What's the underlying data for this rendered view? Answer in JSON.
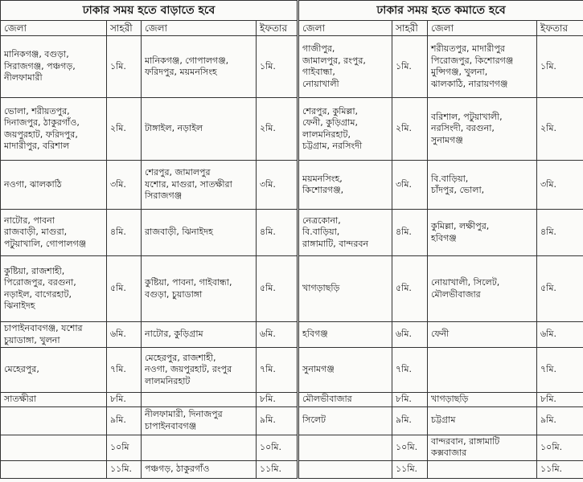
{
  "titles": {
    "increase": "ঢাকার সময় হতে বাড়াতে হবে",
    "decrease": "ঢাকার সময় হতে কমাতে হবে"
  },
  "headers": {
    "district": "জেলা",
    "sehri": "সাহরী",
    "iftar": "ইফতার"
  },
  "rows": [
    {
      "inc_sehri_districts": "মানিকগঞ্জ, বগুড়া,\nসিরাজগঞ্জ, পঞ্চগড়,\nনীলফামারী",
      "inc_sehri": "১মি.",
      "inc_iftar_districts": "মানিকগঞ্জ, গোপালগঞ্জ,\nফরিদপুর, ময়মনসিংহ",
      "inc_iftar": "১মি.",
      "dec_sehri_districts": "গাজীপুর,\nজামালপুর, রংপুর,\nগাইবান্ধা,\nনোয়াখালী",
      "dec_sehri": "১মি.",
      "dec_iftar_districts": "শরীয়তপুর, মাদারীপুর\nপিরোজপুর, কিশোরগঞ্জ\nমুন্সিগঞ্জ, খুলনা,\nঝালকাঠি, নারায়ণগঞ্জ",
      "dec_iftar": "১মি."
    },
    {
      "inc_sehri_districts": "ভোলা, শরীয়তপুর,\nদিনাজপুর, ঠাকুরগাঁও,\nজয়পুরহাট, ফরিদপুর,\nমাদারীপুর, বরিশাল",
      "inc_sehri": "২মি.",
      "inc_iftar_districts": "টাঙ্গাইল, নড়াইল",
      "inc_iftar": "২মি.",
      "dec_sehri_districts": "শেরপুর, কুমিল্লা,\nফেনী, কুড়িগ্রাম,\nলালমনিরহাট,\nচট্টগ্রাম, নরসিংদী",
      "dec_sehri": "২মি.",
      "dec_iftar_districts": "বরিশাল, পটুয়াখালী,\nনরসিংদী, বরগুনা,\nসুনামগঞ্জ",
      "dec_iftar": "২মি."
    },
    {
      "inc_sehri_districts": "নওগা, ঝালকাঠি",
      "inc_sehri": "৩মি.",
      "inc_iftar_districts": "শেরপুর, জামালপুর\nযশোর, মাগুরা, সাতক্ষীরা\nসিরাজগঞ্জ",
      "inc_iftar": "৩মি.",
      "dec_sehri_districts": "ময়মনসিংহ,\nকিশোরগঞ্জ,",
      "dec_sehri": "৩মি.",
      "dec_iftar_districts": "বি.বাড়িয়া,\nচাঁদপুর, ভোলা,",
      "dec_iftar": "৩মি."
    },
    {
      "inc_sehri_districts": "নাটোর, পাবনা\nরাজবাড়ী, মাগুরা,\nপটুয়াখালি, গোপালগঞ্জ",
      "inc_sehri": "৪মি.",
      "inc_iftar_districts": "রাজবাড়ী, ঝিনাইদহ",
      "inc_iftar": "৪মি.",
      "dec_sehri_districts": "নেত্রকোনা,\nবি.বাড়িয়া,\nরাঙ্গামাটি, বান্দরবন",
      "dec_sehri": "৪মি.",
      "dec_iftar_districts": "কুমিল্লা, লক্ষীপুর,\nহবিগঞ্জ",
      "dec_iftar": "৪মি."
    },
    {
      "inc_sehri_districts": "কুষ্টিয়া, রাজশাহী,\nপিরোজপুর, বরগুনা,\nনড়াইল, বাগেরহাট,\nঝিনাইদহ",
      "inc_sehri": "৫মি.",
      "inc_iftar_districts": "কুষ্টিয়া, পাবনা, গাইবান্ধা,\nবগুড়া, চুয়াডাঙ্গা",
      "inc_iftar": "৫মি.",
      "dec_sehri_districts": "খাগড়াছড়ি",
      "dec_sehri": "৫মি.",
      "dec_iftar_districts": "নোয়াখালী, সিলেট,\nমৌলভীবাজার",
      "dec_iftar": "৫মি."
    },
    {
      "inc_sehri_districts": "চাপাইনবাবগঞ্জ, যশোর\nচুয়াডাঙ্গা, খুলনা",
      "inc_sehri": "৬মি.",
      "inc_iftar_districts": "নাটোর, কুড়িগ্রাম",
      "inc_iftar": "৬মি.",
      "dec_sehri_districts": "হবিগঞ্জ",
      "dec_sehri": "৬মি.",
      "dec_iftar_districts": "ফেনী",
      "dec_iftar": "৬মি."
    },
    {
      "inc_sehri_districts": "মেহেরপুর,",
      "inc_sehri": "৭মি.",
      "inc_iftar_districts": "মেহেরপুর, রাজশাহী,\nনওগা, জয়পুরহাট, রংপুর\nলালমনিরহাট",
      "inc_iftar": "৭মি.",
      "dec_sehri_districts": "সুনামগঞ্জ",
      "dec_sehri": "৭মি.",
      "dec_iftar_districts": "",
      "dec_iftar": "৭মি."
    },
    {
      "inc_sehri_districts": "সাতক্ষীরা",
      "inc_sehri": "৮মি.",
      "inc_iftar_districts": "",
      "inc_iftar": "৮মি.",
      "dec_sehri_districts": "মৌলভীবাজার",
      "dec_sehri": "৮মি.",
      "dec_iftar_districts": "খাগড়াছড়ি",
      "dec_iftar": "৮মি."
    },
    {
      "inc_sehri_districts": "",
      "inc_sehri": "৯মি.",
      "inc_iftar_districts": "নীলফামারী, দিনাজপুর\nচাপাইনবাবগঞ্জ",
      "inc_iftar": "৯মি.",
      "dec_sehri_districts": "সিলেট",
      "dec_sehri": "৯মি.",
      "dec_iftar_districts": "চট্টগ্রাম",
      "dec_iftar": "৯মি."
    },
    {
      "inc_sehri_districts": "",
      "inc_sehri": "১০মি",
      "inc_iftar_districts": "",
      "inc_iftar": "১০মি.",
      "dec_sehri_districts": "",
      "dec_sehri": "১০মি.",
      "dec_iftar_districts": "বান্দরবান, রাঙ্গামাটি\nকক্সবাজার",
      "dec_iftar": "১০মি."
    },
    {
      "inc_sehri_districts": "",
      "inc_sehri": "১১মি.",
      "inc_iftar_districts": "পঞ্চগড়, ঠাকুরগাঁও",
      "inc_iftar": "১১মি.",
      "dec_sehri_districts": "",
      "dec_sehri": "১১মি.",
      "dec_iftar_districts": "",
      "dec_iftar": "১১মি."
    }
  ]
}
